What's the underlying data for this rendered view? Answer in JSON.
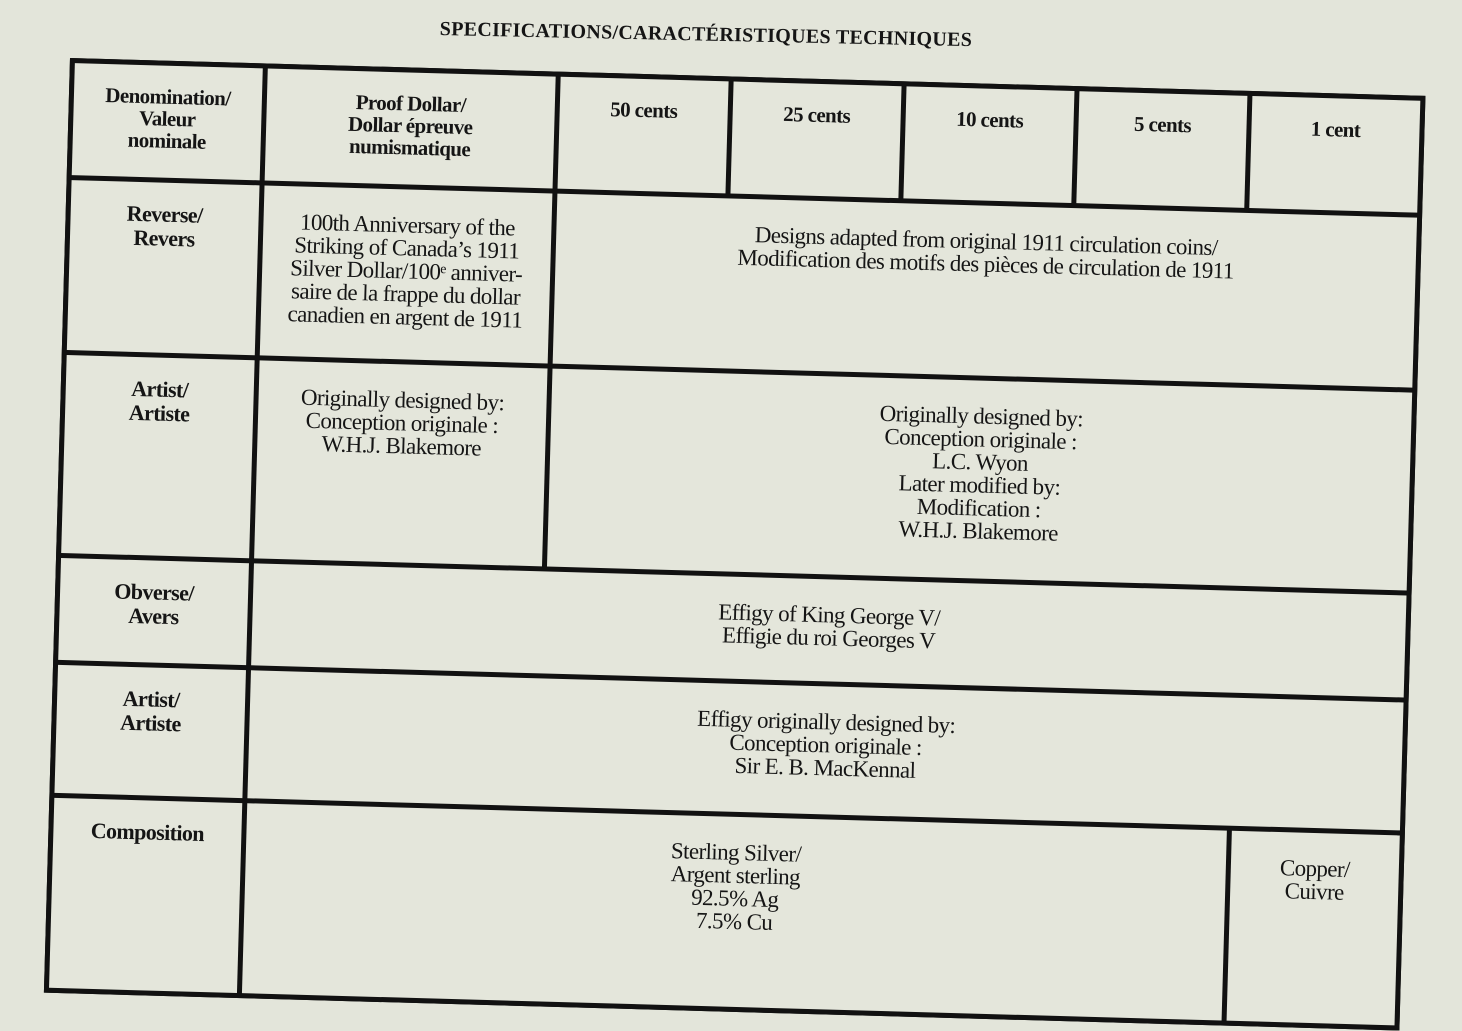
{
  "title": "SPECIFICATIONS/CARACTÉRISTIQUES TECHNIQUES",
  "header": {
    "label": [
      "Denomination/",
      "Valeur",
      "nominale"
    ],
    "columns": [
      [
        "Proof Dollar/",
        "Dollar épreuve",
        "numismatique"
      ],
      [
        "50 cents"
      ],
      [
        "25 cents"
      ],
      [
        "10 cents"
      ],
      [
        "5 cents"
      ],
      [
        "1 cent"
      ]
    ]
  },
  "rows": {
    "reverse": {
      "label": [
        "Reverse/",
        "Revers"
      ],
      "proof": [
        "100th Anniversary of the",
        "Striking of Canada’s 1911",
        "Silver Dollar/100ᵉ anniver-",
        "saire de la frappe du dollar",
        "canadien en argent de 1911"
      ],
      "others": [
        "Designs adapted from original 1911 circulation coins/",
        "Modification des motifs des pièces de circulation de 1911"
      ]
    },
    "artist": {
      "label": [
        "Artist/",
        "Artiste"
      ],
      "proof": [
        "Originally designed by:",
        "Conception originale :",
        "W.H.J. Blakemore"
      ],
      "others": [
        "Originally designed by:",
        "Conception originale :",
        "L.C. Wyon",
        "Later modified by:",
        "Modification :",
        "W.H.J. Blakemore"
      ]
    },
    "obverse": {
      "label": [
        "Obverse/",
        "Avers"
      ],
      "all": [
        "Effigy of King George V/",
        "Effigie du roi Georges V"
      ]
    },
    "obverse_artist": {
      "label": [
        "Artist/",
        "Artiste"
      ],
      "all": [
        "Effigy originally designed by:",
        "Conception originale :",
        "Sir E. B. MacKennal"
      ]
    },
    "composition": {
      "label": [
        "Composition"
      ],
      "silver": [
        "Sterling Silver/",
        "Argent sterling",
        "92.5% Ag",
        "7.5% Cu"
      ],
      "copper": [
        "Copper/",
        "Cuivre"
      ]
    }
  }
}
